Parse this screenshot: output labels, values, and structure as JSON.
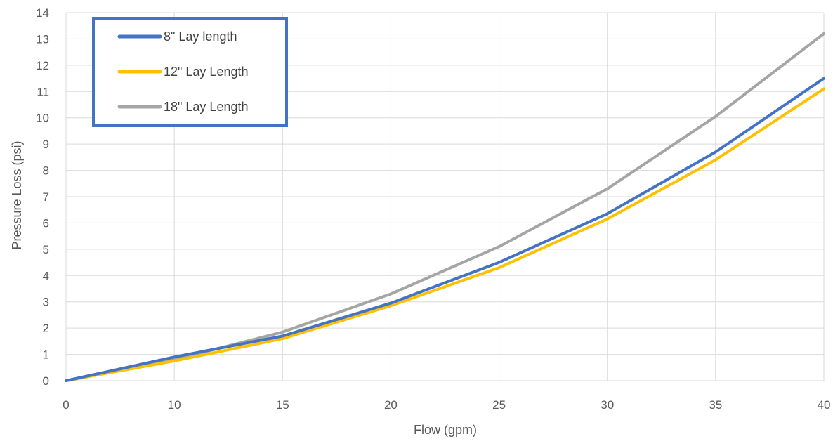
{
  "chart_data": {
    "type": "line",
    "title": "",
    "xlabel": "Flow (gpm)",
    "ylabel": "Pressure Loss (psi)",
    "x_ticks": [
      "0",
      "10",
      "15",
      "20",
      "25",
      "30",
      "35",
      "40"
    ],
    "y_ticks": [
      "0",
      "1",
      "2",
      "3",
      "4",
      "5",
      "6",
      "7",
      "8",
      "9",
      "10",
      "11",
      "12",
      "13",
      "14"
    ],
    "ylim": [
      0,
      14
    ],
    "grid": true,
    "legend_position": "top-left",
    "series": [
      {
        "name": "8\" Lay length",
        "color": "#4472C4",
        "values": [
          0,
          0.9,
          1.7,
          2.95,
          4.5,
          6.35,
          8.7,
          11.5
        ]
      },
      {
        "name": "12\" Lay Length",
        "color": "#FFC000",
        "values": [
          0,
          0.75,
          1.6,
          2.85,
          4.3,
          6.15,
          8.4,
          11.1
        ]
      },
      {
        "name": "18\" Lay Length",
        "color": "#A5A5A5",
        "values": [
          0,
          0.8,
          1.85,
          3.3,
          5.1,
          7.3,
          10.05,
          13.2
        ]
      }
    ]
  }
}
